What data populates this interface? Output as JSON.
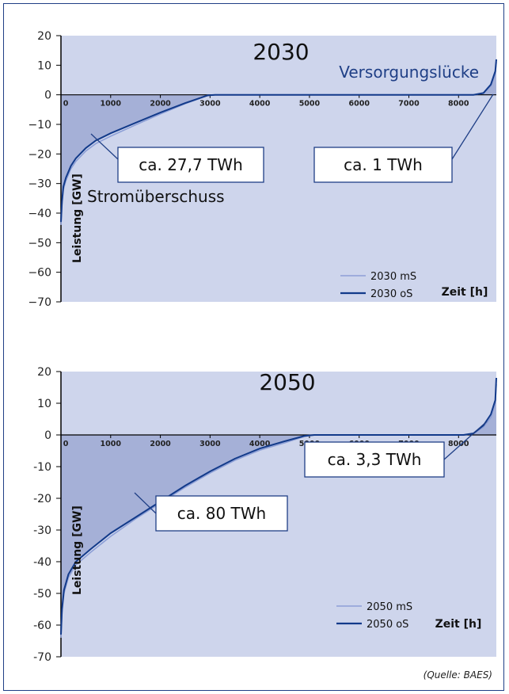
{
  "source": "(Quelle: BAES)",
  "chart_data": [
    {
      "type": "area",
      "title": "2030",
      "xlabel": "Zeit [h]",
      "ylabel": "Leistung [GW]",
      "xlim": [
        0,
        8760
      ],
      "ylim": [
        -70,
        20
      ],
      "x_ticks": [
        "0",
        "1000",
        "2000",
        "3000",
        "4000",
        "5000",
        "6000",
        "7000",
        "8000"
      ],
      "y_ticks": [
        "20",
        "10",
        "0",
        "−10",
        "−20",
        "−30",
        "−40",
        "−50",
        "−60",
        "−70"
      ],
      "annotations": {
        "top_right": "Versorgungslücke",
        "left": "Stromüberschuss",
        "box_left": "ca. 27,7 TWh",
        "box_right": "ca. 1 TWh"
      },
      "series": [
        {
          "name": "2030 mS",
          "color": "#8d9fd6",
          "x": [
            0,
            20,
            50,
            100,
            200,
            300,
            500,
            700,
            1000,
            1500,
            2000,
            2500,
            2950,
            3100,
            8000,
            8300,
            8500,
            8650,
            8740,
            8760
          ],
          "y": [
            -44,
            -37,
            -32,
            -29,
            -25,
            -22.5,
            -19,
            -16.5,
            -14,
            -10.2,
            -6.5,
            -3.0,
            -0.3,
            0,
            0,
            0,
            0.5,
            3,
            7,
            11
          ]
        },
        {
          "name": "2030 oS",
          "color": "#123a8a",
          "x": [
            0,
            20,
            50,
            100,
            200,
            300,
            500,
            700,
            1000,
            1500,
            2000,
            2500,
            2950,
            3100,
            8000,
            8300,
            8500,
            8650,
            8740,
            8760
          ],
          "y": [
            -43,
            -36,
            -31,
            -28,
            -24,
            -21.5,
            -18,
            -15.5,
            -13,
            -9.5,
            -6.0,
            -2.8,
            -0.2,
            0,
            0,
            0,
            0.6,
            3.5,
            8,
            12
          ]
        }
      ]
    },
    {
      "type": "area",
      "title": "2050",
      "xlabel": "Zeit [h]",
      "ylabel": "Leistung [GW]",
      "xlim": [
        0,
        8760
      ],
      "ylim": [
        -70,
        20
      ],
      "x_ticks": [
        "0",
        "1000",
        "2000",
        "3000",
        "4000",
        "5000",
        "6000",
        "7000",
        "8000"
      ],
      "y_ticks": [
        "20",
        "10",
        "0",
        "-10",
        "-20",
        "-30",
        "-40",
        "-50",
        "-60",
        "-70"
      ],
      "annotations": {
        "box_left": "ca. 80 TWh",
        "box_right": "ca. 3,3 TWh"
      },
      "series": [
        {
          "name": "2050 mS",
          "color": "#8d9fd6",
          "x": [
            0,
            20,
            60,
            150,
            300,
            600,
            1000,
            1500,
            2000,
            2500,
            3000,
            3500,
            4000,
            4500,
            4900,
            5100,
            8100,
            8300,
            8500,
            8650,
            8740,
            8760
          ],
          "y": [
            -64,
            -56,
            -50,
            -45,
            -41,
            -37,
            -32,
            -26.5,
            -21.5,
            -16.5,
            -12,
            -8,
            -4.8,
            -2.5,
            -0.5,
            0,
            0,
            0.4,
            2.5,
            5.5,
            10,
            16
          ]
        },
        {
          "name": "2050 oS",
          "color": "#123a8a",
          "x": [
            0,
            20,
            60,
            150,
            300,
            600,
            1000,
            1500,
            2000,
            2500,
            3000,
            3500,
            4000,
            4500,
            4900,
            5100,
            8100,
            8300,
            8500,
            8650,
            8740,
            8760
          ],
          "y": [
            -63,
            -55,
            -49,
            -44,
            -40,
            -36,
            -31,
            -26,
            -21,
            -16,
            -11.5,
            -7.5,
            -4.3,
            -2.0,
            -0.3,
            0,
            0,
            0.5,
            3,
            6.5,
            11,
            18
          ]
        }
      ]
    }
  ]
}
